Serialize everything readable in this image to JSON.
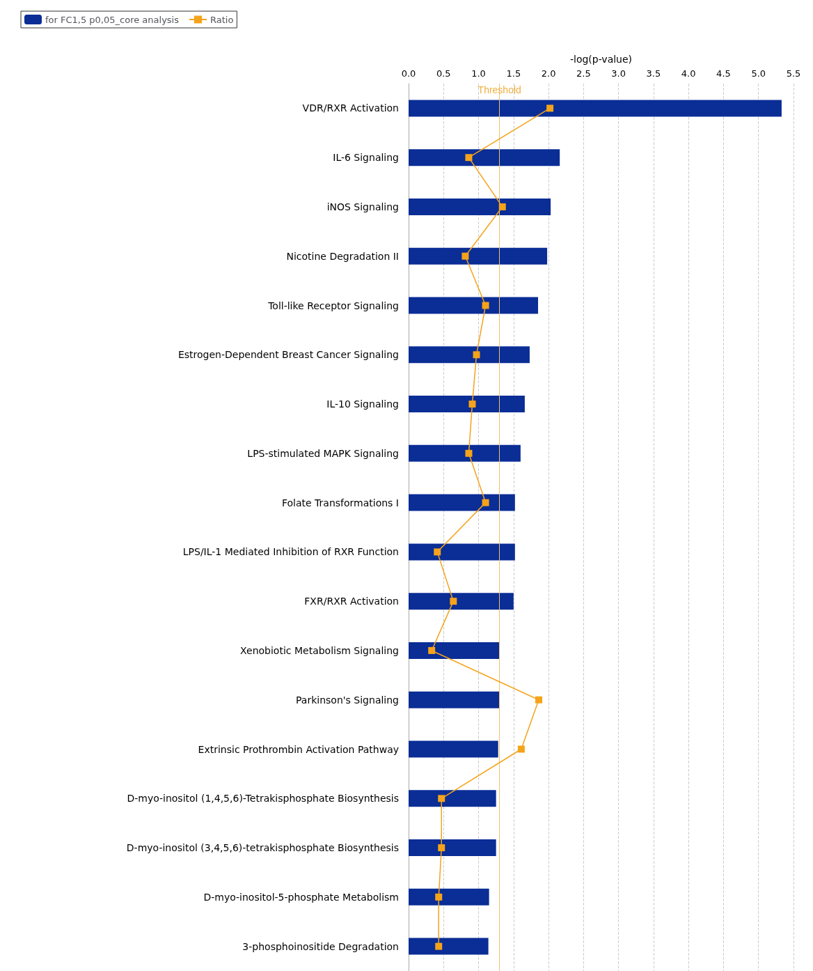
{
  "chart_data": {
    "type": "bar",
    "orientation": "horizontal",
    "xlabel": "-log(p-value)",
    "categories": [
      "VDR/RXR Activation",
      "IL-6 Signaling",
      "iNOS Signaling",
      "Nicotine Degradation II",
      "Toll-like Receptor Signaling",
      "Estrogen-Dependent Breast Cancer Signaling",
      "IL-10 Signaling",
      "LPS-stimulated MAPK Signaling",
      "Folate Transformations I",
      "LPS/IL-1 Mediated Inhibition of RXR Function",
      "FXR/RXR Activation",
      "Xenobiotic Metabolism Signaling",
      "Parkinson's Signaling",
      "Extrinsic Prothrombin Activation Pathway",
      "D-myo-inositol (1,4,5,6)-Tetrakisphosphate Biosynthesis",
      "D-myo-inositol (3,4,5,6)-tetrakisphosphate Biosynthesis",
      "D-myo-inositol-5-phosphate Metabolism",
      "3-phosphoinositide Degradation"
    ],
    "series": [
      {
        "name": "for FC1,5 p0,05_core analysis",
        "color": "#0a2d96",
        "values": [
          5.33,
          2.16,
          2.03,
          1.98,
          1.85,
          1.73,
          1.66,
          1.6,
          1.52,
          1.52,
          1.5,
          1.3,
          1.3,
          1.28,
          1.25,
          1.25,
          1.15,
          1.14
        ]
      },
      {
        "name": "Ratio",
        "type": "line",
        "color": "#f5a31a",
        "values": [
          2.02,
          0.86,
          1.34,
          0.81,
          1.1,
          0.97,
          0.91,
          0.86,
          1.1,
          0.41,
          0.64,
          0.33,
          1.86,
          1.61,
          0.47,
          0.47,
          0.43,
          0.43
        ]
      }
    ],
    "xlim": [
      0,
      5.5
    ],
    "xticks": [
      {
        "value": 0,
        "label": "0.0"
      },
      {
        "value": 0.5,
        "label": "0.5"
      },
      {
        "value": 1,
        "label": "1.0"
      },
      {
        "value": 1.5,
        "label": "1.5"
      },
      {
        "value": 2,
        "label": "2.0"
      },
      {
        "value": 2.5,
        "label": "2.5"
      },
      {
        "value": 3,
        "label": "3.0"
      },
      {
        "value": 3.5,
        "label": "3.5"
      },
      {
        "value": 4,
        "label": "4.0"
      },
      {
        "value": 4.5,
        "label": "4.5"
      },
      {
        "value": 5,
        "label": "5.0"
      },
      {
        "value": 5.5,
        "label": "5.5"
      }
    ],
    "ref_lines": [
      {
        "axis": "x",
        "value": 1.3,
        "label": "Threshold",
        "color": "#f0c070"
      }
    ],
    "grid": "x",
    "legend": "top left",
    "marker": "square",
    "line_style": "solid"
  }
}
